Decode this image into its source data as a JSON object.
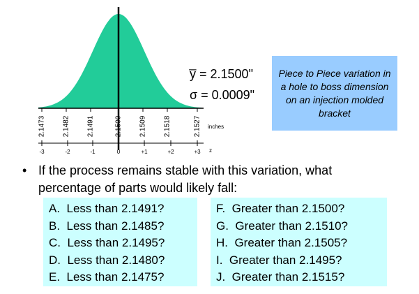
{
  "curve": {
    "x_labels": [
      "2.1473",
      "2.1482",
      "2.1491",
      "2.1500",
      "2.1509",
      "2.1518",
      "2.1527"
    ],
    "x_unit": "inches",
    "z_labels": [
      "-3",
      "-2",
      "-1",
      "0",
      "+1",
      "+2",
      "+3"
    ],
    "z_unit": "z"
  },
  "stats": {
    "mean": "y̅ = 2.1500\"",
    "sigma": "σ = 0.0009\""
  },
  "note": "Piece to Piece variation in a hole to boss dimension on an injection molded bracket",
  "bullet": "If the process remains stable with this variation, what percentage of parts would likely fall:",
  "questions_left": [
    "A.  Less than 2.1491?",
    "B.  Less than 2.1485?",
    "C.  Less than 2.1495?",
    "D.  Less than 2.1480?",
    "E.  Less than 2.1475?"
  ],
  "questions_right": [
    "F.  Greater than 2.1500?",
    "G.  Greater than 2.1510?",
    "H.  Greater than 2.1505?",
    "I.  Greater than 2.1495?",
    "J.  Greater than 2.1515?"
  ]
}
